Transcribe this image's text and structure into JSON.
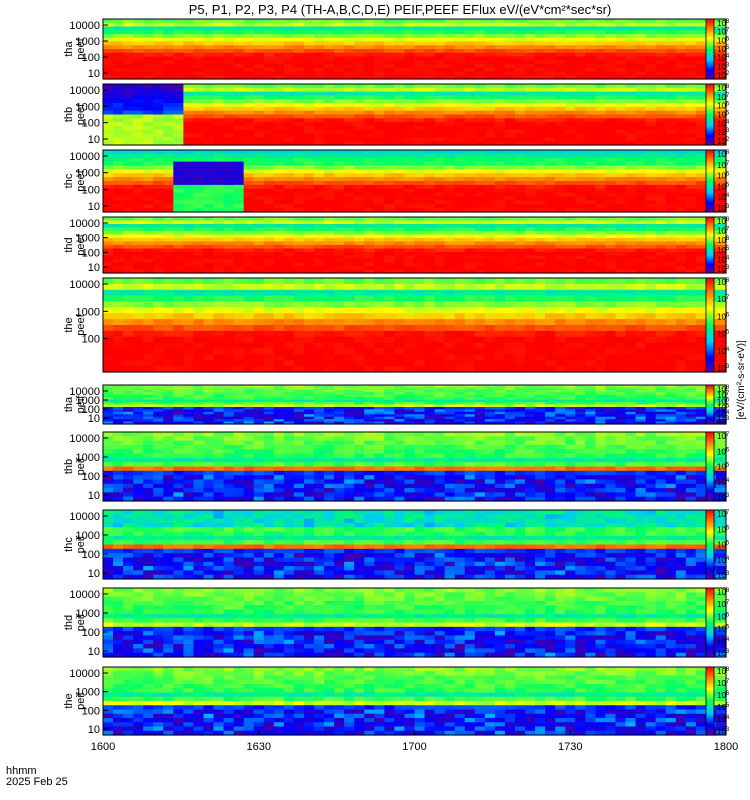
{
  "title": "P5, P1, P2, P3, P4 (TH-A,B,C,D,E) PEIF,PEEF EFlux eV/(eV*cm²*sec*sr)",
  "chart_data": {
    "type": "heatmap",
    "x_axis": {
      "ticks": [
        "1600",
        "1630",
        "1700",
        "1730",
        "1800"
      ],
      "label_line1": "hhmm",
      "label_line2": "2025 Feb 25"
    },
    "y_axis_ticks": [
      "10000",
      "1000",
      "100",
      "10"
    ],
    "colorbar_label": "[eV/(cm²-s-sr-eV)]",
    "panels": [
      {
        "ylabel1": "tha",
        "ylabel2": "peef",
        "cbar_exps": [
          "8",
          "7",
          "6",
          "5",
          "4",
          "3",
          "2"
        ],
        "y_ticks": [
          "10000",
          "1000",
          "100",
          "10"
        ]
      },
      {
        "ylabel1": "thb",
        "ylabel2": "peef",
        "cbar_exps": [
          "8",
          "7",
          "6",
          "5",
          "4",
          "3",
          "2"
        ],
        "y_ticks": [
          "10000",
          "1000",
          "100",
          "10"
        ]
      },
      {
        "ylabel1": "thc",
        "ylabel2": "peef",
        "cbar_exps": [
          "8",
          "7",
          "6",
          "5",
          "4",
          "3"
        ],
        "y_ticks": [
          "10000",
          "1000",
          "100",
          "10"
        ]
      },
      {
        "ylabel1": "thd",
        "ylabel2": "peef",
        "cbar_exps": [
          "8",
          "7",
          "6",
          "5",
          "4",
          "3"
        ],
        "y_ticks": [
          "10000",
          "1000",
          "100",
          "10"
        ]
      },
      {
        "ylabel1": "the",
        "ylabel2": "peef",
        "cbar_exps": [
          "8",
          "7",
          "6",
          "5",
          "4",
          "3"
        ],
        "y_ticks": [
          "10000",
          "1000",
          "100"
        ]
      },
      {
        "ylabel1": "tha",
        "ylabel2": "peif",
        "cbar_exps": [
          "8",
          "7",
          "6",
          "5",
          "4",
          "3"
        ],
        "y_ticks": [
          "10000",
          "1000",
          "100",
          "10"
        ]
      },
      {
        "ylabel1": "thb",
        "ylabel2": "peif",
        "cbar_exps": [
          "7",
          "6",
          "5",
          "4",
          "3"
        ],
        "y_ticks": [
          "10000",
          "1000",
          "100",
          "10"
        ]
      },
      {
        "ylabel1": "thc",
        "ylabel2": "peif",
        "cbar_exps": [
          "7",
          "6",
          "5",
          "4",
          "3"
        ],
        "y_ticks": [
          "10000",
          "1000",
          "100",
          "10"
        ]
      },
      {
        "ylabel1": "thd",
        "ylabel2": "peif",
        "cbar_exps": [
          "8",
          "7",
          "6",
          "5",
          "4",
          "3"
        ],
        "y_ticks": [
          "10000",
          "1000",
          "100",
          "10"
        ]
      },
      {
        "ylabel1": "the",
        "ylabel2": "peif",
        "cbar_exps": [
          "8",
          "7",
          "6",
          "5",
          "4",
          "3"
        ],
        "y_ticks": [
          "10000",
          "1000",
          "100",
          "10"
        ]
      }
    ]
  }
}
